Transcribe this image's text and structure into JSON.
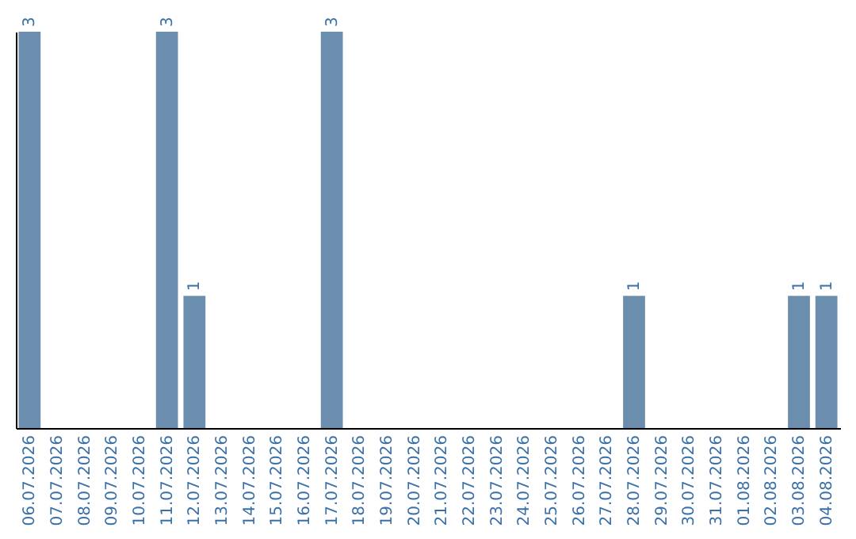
{
  "chart_data": {
    "type": "bar",
    "categories": [
      "06.07.2026",
      "07.07.2026",
      "08.07.2026",
      "09.07.2026",
      "10.07.2026",
      "11.07.2026",
      "12.07.2026",
      "13.07.2026",
      "14.07.2026",
      "15.07.2026",
      "16.07.2026",
      "17.07.2026",
      "18.07.2026",
      "19.07.2026",
      "20.07.2026",
      "21.07.2026",
      "22.07.2026",
      "23.07.2026",
      "24.07.2026",
      "25.07.2026",
      "26.07.2026",
      "27.07.2026",
      "28.07.2026",
      "29.07.2026",
      "30.07.2026",
      "31.07.2026",
      "01.08.2026",
      "02.08.2026",
      "03.08.2026",
      "04.08.2026"
    ],
    "values": [
      3,
      0,
      0,
      0,
      0,
      3,
      1,
      0,
      0,
      0,
      0,
      3,
      0,
      0,
      0,
      0,
      0,
      0,
      0,
      0,
      0,
      0,
      1,
      0,
      0,
      0,
      0,
      0,
      1,
      1
    ],
    "value_labels": [
      "3",
      null,
      null,
      null,
      null,
      "3",
      "1",
      null,
      null,
      null,
      null,
      "3",
      null,
      null,
      null,
      null,
      null,
      null,
      null,
      null,
      null,
      null,
      "1",
      null,
      null,
      null,
      null,
      null,
      "1",
      "1"
    ],
    "color": "#6b8eae"
  }
}
